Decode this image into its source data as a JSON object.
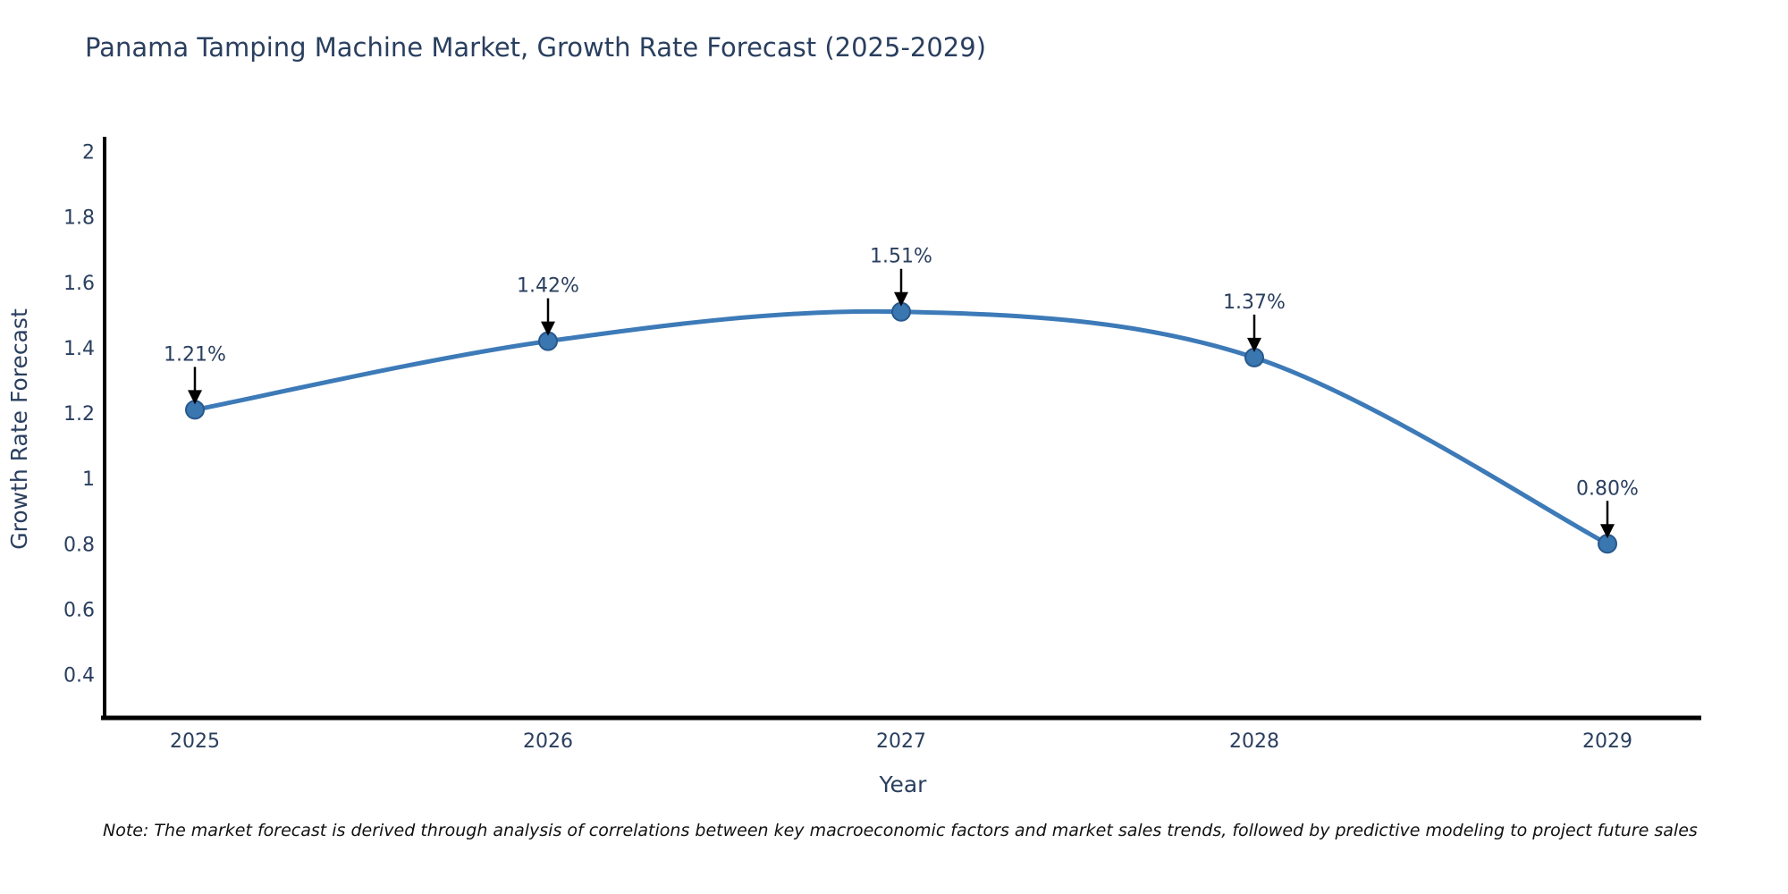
{
  "chart_data": {
    "type": "line",
    "title": "Panama Tamping Machine Market, Growth Rate Forecast (2025-2029)",
    "xlabel": "Year",
    "ylabel": "Growth Rate Forecast",
    "categories": [
      "2025",
      "2026",
      "2027",
      "2028",
      "2029"
    ],
    "values": [
      1.21,
      1.42,
      1.51,
      1.37,
      0.8
    ],
    "point_labels": [
      "1.21%",
      "1.42%",
      "1.51%",
      "1.37%",
      "0.80%"
    ],
    "ytick_values": [
      2,
      1.8,
      1.6,
      1.4,
      1.2,
      1,
      0.8,
      0.6,
      0.4
    ],
    "ytick_labels": [
      "2",
      "1.8",
      "1.6",
      "1.4",
      "1.2",
      "1",
      "0.8",
      "0.6",
      "0.4"
    ],
    "ylim": [
      0.27,
      2.04
    ],
    "grid": false,
    "legend": "none",
    "line_shape": "spline",
    "colors": {
      "line": "#3d7ab8",
      "marker_fill": "#3a76b0",
      "marker_edge": "#28588c",
      "axis_line": "#000000",
      "labels": "#2a3f5f",
      "annotation_arrow": "#000000",
      "note_text": "#111111"
    },
    "note": "Note: The market forecast is derived through analysis of correlations between key macroeconomic factors and market sales trends, followed by predictive modeling to project future sales"
  }
}
